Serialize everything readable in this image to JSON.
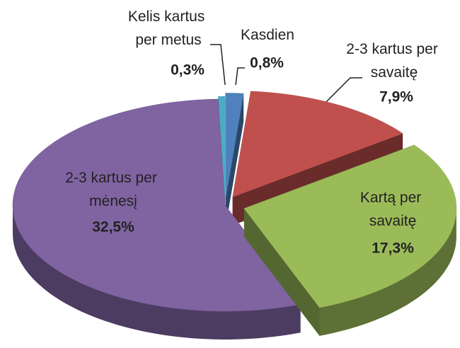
{
  "chart_data": {
    "type": "pie",
    "categories": [
      "Kasdien",
      "2-3 kartus per savaitę",
      "Kartą per savaitę",
      "2-3 kartus per mėnesį",
      "Kelis kartus per metus"
    ],
    "values": [
      0.8,
      7.9,
      17.3,
      32.5,
      0.3
    ],
    "value_labels": [
      "0,8%",
      "7,9%",
      "17,3%",
      "32,5%",
      "0,3%"
    ],
    "colors": [
      "#4f81bd",
      "#c0504d",
      "#9bbb59",
      "#8064a2",
      "#4bacc6"
    ]
  }
}
